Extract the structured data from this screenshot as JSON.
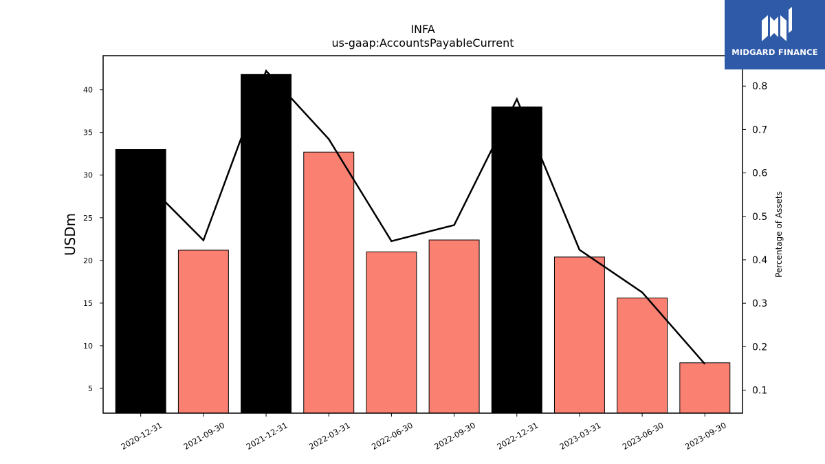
{
  "chart_data": {
    "type": "bar",
    "title": "INFA",
    "subtitle": "us-gaap:AccountsPayableCurrent",
    "ylabel": "USDm",
    "y2label": "Percentage of Assets",
    "categories": [
      "2020-12-31",
      "2021-09-30",
      "2021-12-31",
      "2022-03-31",
      "2022-06-30",
      "2022-09-30",
      "2022-12-31",
      "2023-03-31",
      "2023-06-30",
      "2023-09-30"
    ],
    "series": [
      {
        "values": [
          33.0,
          21.2,
          41.8,
          32.7,
          21.0,
          22.4,
          38.0,
          20.4,
          15.6,
          8.0
        ],
        "colors": [
          "#000000",
          "#fa8072",
          "#000000",
          "#fa8072",
          "#fa8072",
          "#fa8072",
          "#000000",
          "#fa8072",
          "#fa8072",
          "#fa8072"
        ]
      },
      {
        "axis": "right",
        "type": "line",
        "color": "#000000",
        "values": [
          0.59,
          0.445,
          0.835,
          0.678,
          0.443,
          0.48,
          0.77,
          0.423,
          0.325,
          0.16
        ]
      }
    ],
    "ylim": [
      2.1,
      44.0
    ],
    "y_ticks": [
      5,
      10,
      15,
      20,
      25,
      30,
      35,
      40
    ],
    "y2lim": [
      0.047,
      0.87
    ],
    "y2_ticks": [
      0.1,
      0.2,
      0.3,
      0.4,
      0.5,
      0.6,
      0.7,
      0.8
    ],
    "grid": false,
    "legend": "none"
  },
  "logo": {
    "text": "MIDGARD FINANCE",
    "color": "#2f5aa8"
  }
}
